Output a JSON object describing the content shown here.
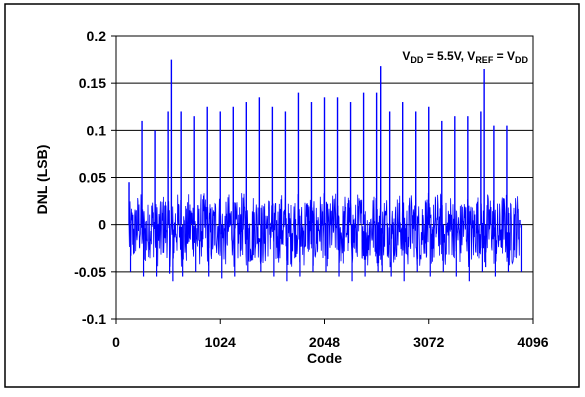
{
  "chart_data": {
    "type": "line",
    "title": "",
    "annotation": {
      "parts": [
        {
          "text": "V",
          "role": "base"
        },
        {
          "text": "DD",
          "role": "sub"
        },
        {
          "text": " = 5.5V,  V",
          "role": "base"
        },
        {
          "text": "REF",
          "role": "sub"
        },
        {
          "text": " = V",
          "role": "base"
        },
        {
          "text": "DD",
          "role": "sub"
        }
      ],
      "position": "top-right"
    },
    "xlabel": "Code",
    "ylabel": "DNL (LSB)",
    "xlim": [
      0,
      4096
    ],
    "ylim": [
      -0.1,
      0.2
    ],
    "xticks": [
      0,
      1024,
      2048,
      3072,
      4096
    ],
    "yticks": [
      -0.1,
      -0.05,
      0,
      0.05,
      0.1,
      0.15,
      0.2
    ],
    "xtick_labels": [
      "0",
      "1024",
      "2048",
      "3072",
      "4096"
    ],
    "ytick_labels": [
      "-0.1",
      "-0.05",
      "0",
      "0.05",
      "0.1",
      "0.15",
      "0.2"
    ],
    "grid": "horizontal",
    "legend": "none",
    "series": [
      {
        "color": "#0000ff",
        "x_range": [
          128,
          3968
        ],
        "baseline_band": [
          -0.04,
          0.03
        ],
        "x_spikes": [
          128,
          256,
          384,
          512,
          544,
          640,
          768,
          896,
          1024,
          1152,
          1280,
          1408,
          1536,
          1664,
          1792,
          1920,
          2048,
          2176,
          2304,
          2432,
          2560,
          2600,
          2688,
          2816,
          2944,
          3072,
          3200,
          3328,
          3456,
          3584,
          3616,
          3712,
          3840,
          3968
        ],
        "y_spikes": [
          0.045,
          0.11,
          0.1,
          0.12,
          0.175,
          0.12,
          0.115,
          0.125,
          0.12,
          0.125,
          0.13,
          0.135,
          0.125,
          0.12,
          0.14,
          0.13,
          0.135,
          0.135,
          0.13,
          0.14,
          0.14,
          0.168,
          0.12,
          0.13,
          0.12,
          0.125,
          0.11,
          0.115,
          0.115,
          0.12,
          0.165,
          0.105,
          0.105,
          0.005
        ],
        "y_dips": [
          -0.05,
          -0.055,
          -0.055,
          -0.052,
          -0.06,
          -0.055,
          -0.05,
          -0.055,
          -0.057,
          -0.055,
          -0.05,
          -0.05,
          -0.055,
          -0.06,
          -0.055,
          -0.05,
          -0.05,
          -0.055,
          -0.06,
          -0.055,
          -0.05,
          -0.05,
          -0.055,
          -0.06,
          -0.05,
          -0.055,
          -0.05,
          -0.055,
          -0.06,
          -0.05,
          -0.045,
          -0.055,
          -0.05,
          -0.05
        ]
      }
    ]
  }
}
